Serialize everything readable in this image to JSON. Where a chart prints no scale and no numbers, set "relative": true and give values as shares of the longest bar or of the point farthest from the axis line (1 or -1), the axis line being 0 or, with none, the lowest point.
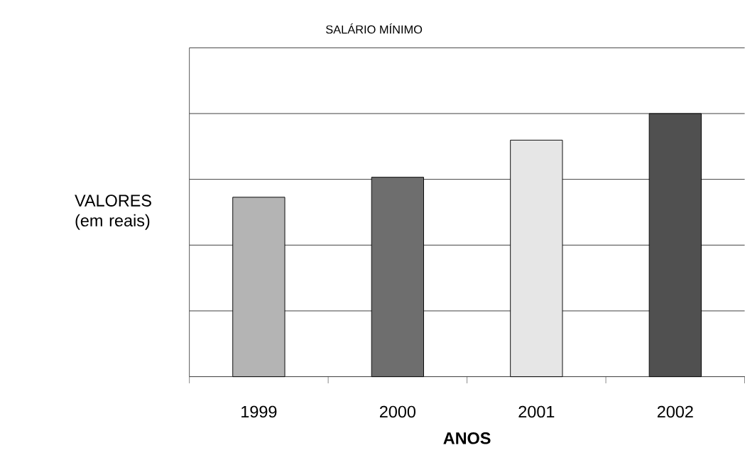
{
  "chart_data": {
    "type": "bar",
    "title": "SALÁRIO MÍNIMO",
    "xlabel": "ANOS",
    "ylabel": "VALORES (em reais)",
    "categories": [
      "1999",
      "2000",
      "2001",
      "2002"
    ],
    "values": [
      0.682,
      0.758,
      0.899,
      1
    ],
    "colors": [
      "#b4b4b4",
      "#6e6e6e",
      "#e6e6e6",
      "#505050"
    ],
    "relative": true,
    "grid": "y"
  }
}
